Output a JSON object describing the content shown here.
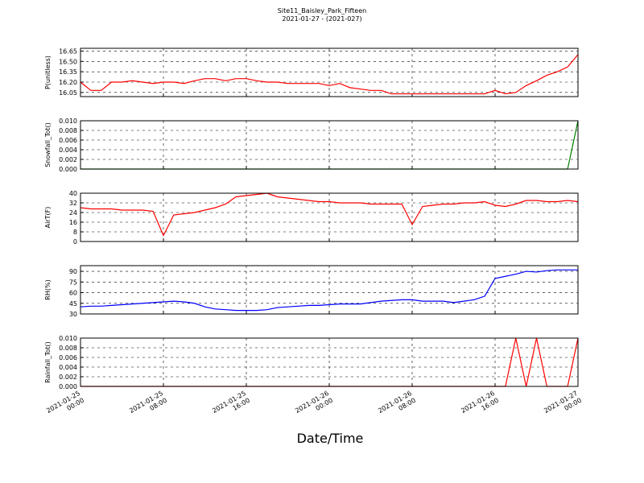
{
  "chart_data": {
    "type": "line",
    "title": "Site11_Baisley_Park_Fifteen",
    "subtitle": "2021-01-27 - (2021-027)",
    "x_label": "Date/Time",
    "x": [
      "2021-01-25 00:00",
      "2021-01-25 01:00",
      "2021-01-25 02:00",
      "2021-01-25 03:00",
      "2021-01-25 04:00",
      "2021-01-25 05:00",
      "2021-01-25 06:00",
      "2021-01-25 07:00",
      "2021-01-25 08:00",
      "2021-01-25 09:00",
      "2021-01-25 10:00",
      "2021-01-25 11:00",
      "2021-01-25 12:00",
      "2021-01-25 13:00",
      "2021-01-25 14:00",
      "2021-01-25 15:00",
      "2021-01-25 16:00",
      "2021-01-25 17:00",
      "2021-01-25 18:00",
      "2021-01-25 19:00",
      "2021-01-25 20:00",
      "2021-01-25 21:00",
      "2021-01-25 22:00",
      "2021-01-25 23:00",
      "2021-01-26 00:00",
      "2021-01-26 01:00",
      "2021-01-26 02:00",
      "2021-01-26 03:00",
      "2021-01-26 04:00",
      "2021-01-26 05:00",
      "2021-01-26 06:00",
      "2021-01-26 07:00",
      "2021-01-26 08:00",
      "2021-01-26 09:00",
      "2021-01-26 10:00",
      "2021-01-26 11:00",
      "2021-01-26 12:00",
      "2021-01-26 13:00",
      "2021-01-26 14:00",
      "2021-01-26 15:00",
      "2021-01-26 16:00",
      "2021-01-26 17:00",
      "2021-01-26 18:00",
      "2021-01-26 19:00",
      "2021-01-26 20:00",
      "2021-01-26 21:00",
      "2021-01-26 22:00",
      "2021-01-26 23:00",
      "2021-01-27 00:00"
    ],
    "xlim": [
      "2021-01-25 00:00",
      "2021-01-27 00:00"
    ],
    "xticks": [
      "2021-01-25 00:00",
      "2021-01-25 08:00",
      "2021-01-25 16:00",
      "2021-01-26 00:00",
      "2021-01-26 08:00",
      "2021-01-26 16:00",
      "2021-01-27 00:00"
    ],
    "grid": true,
    "panels": [
      {
        "y_label": "P(unitless)",
        "ylim": [
          15.99,
          16.69
        ],
        "yticks": [
          16.05,
          {
            "value": 16.2,
            "label": "16.20"
          },
          16.35,
          {
            "value": 16.5,
            "label": "16.50"
          },
          16.65
        ],
        "series": [
          {
            "color": "#ff0000",
            "values": [
              16.2,
              16.08,
              16.08,
              16.2,
              16.2,
              16.22,
              16.2,
              16.18,
              16.2,
              16.2,
              16.18,
              16.22,
              16.25,
              16.25,
              16.22,
              16.25,
              16.25,
              16.22,
              16.2,
              16.2,
              16.18,
              16.18,
              16.18,
              16.18,
              16.15,
              16.18,
              16.12,
              16.1,
              16.08,
              16.08,
              16.03,
              16.03,
              16.03,
              16.03,
              16.03,
              16.03,
              16.03,
              16.03,
              16.03,
              16.03,
              16.08,
              16.03,
              16.05,
              16.15,
              16.22,
              16.3,
              16.35,
              16.42,
              16.6
            ]
          }
        ]
      },
      {
        "y_label": "Snowfall_Tot()",
        "ylim": [
          0,
          0.01
        ],
        "yticks": [
          {
            "value": 0,
            "label": "0.000"
          },
          {
            "value": 0.002,
            "label": "0.002"
          },
          {
            "value": 0.004,
            "label": "0.004"
          },
          {
            "value": 0.006,
            "label": "0.006"
          },
          {
            "value": 0.008,
            "label": "0.008"
          },
          {
            "value": 0.01,
            "label": "0.010"
          }
        ],
        "series": [
          {
            "color": "#008000",
            "values": [
              0,
              0,
              0,
              0,
              0,
              0,
              0,
              0,
              0,
              0,
              0,
              0,
              0,
              0,
              0,
              0,
              0,
              0,
              0,
              0,
              0,
              0,
              0,
              0,
              0,
              0,
              0,
              0,
              0,
              0,
              0,
              0,
              0,
              0,
              0,
              0,
              0,
              0,
              0,
              0,
              0,
              0,
              0,
              0,
              0,
              0,
              0,
              0,
              0.01
            ]
          }
        ]
      },
      {
        "y_label": "AirT(F)",
        "ylim": [
          0,
          40
        ],
        "yticks": [
          0,
          8,
          16,
          24,
          32,
          40
        ],
        "series": [
          {
            "color": "#ff0000",
            "values": [
              28,
              27,
              27,
              27,
              26,
              26,
              26,
              25,
              5,
              22,
              23,
              24,
              26,
              28,
              31,
              37,
              38,
              39,
              40,
              37,
              36,
              35,
              34,
              33,
              33,
              32,
              32,
              32,
              31,
              31,
              31,
              31,
              14,
              29,
              30,
              31,
              31,
              32,
              32,
              33,
              30,
              29,
              31,
              34,
              34,
              33,
              33,
              34,
              33
            ]
          }
        ]
      },
      {
        "y_label": "RH(%)",
        "ylim": [
          30,
          98
        ],
        "yticks": [
          30,
          45,
          60,
          75,
          90
        ],
        "series": [
          {
            "color": "#0000ff",
            "values": [
              40,
              41,
              41,
              42,
              43,
              44,
              45,
              46,
              47,
              48,
              47,
              45,
              40,
              37,
              36,
              35,
              35,
              35,
              36,
              39,
              40,
              41,
              42,
              42,
              43,
              44,
              44,
              44,
              46,
              48,
              49,
              50,
              50,
              48,
              48,
              48,
              46,
              48,
              50,
              55,
              80,
              83,
              86,
              90,
              89,
              91,
              92,
              92,
              92
            ]
          }
        ]
      },
      {
        "y_label": "Rainfall_Tot()",
        "ylim": [
          0,
          0.01
        ],
        "yticks": [
          {
            "value": 0,
            "label": "0.000"
          },
          {
            "value": 0.002,
            "label": "0.002"
          },
          {
            "value": 0.004,
            "label": "0.004"
          },
          {
            "value": 0.006,
            "label": "0.006"
          },
          {
            "value": 0.008,
            "label": "0.008"
          },
          {
            "value": 0.01,
            "label": "0.010"
          }
        ],
        "series": [
          {
            "color": "#ff0000",
            "values": [
              0,
              0,
              0,
              0,
              0,
              0,
              0,
              0,
              0,
              0,
              0,
              0,
              0,
              0,
              0,
              0,
              0,
              0,
              0,
              0,
              0,
              0,
              0,
              0,
              0,
              0,
              0,
              0,
              0,
              0,
              0,
              0,
              0,
              0,
              0,
              0,
              0,
              0,
              0,
              0,
              0,
              0,
              0.01,
              0,
              0.01,
              0,
              0,
              0,
              0.01
            ]
          }
        ]
      }
    ]
  }
}
